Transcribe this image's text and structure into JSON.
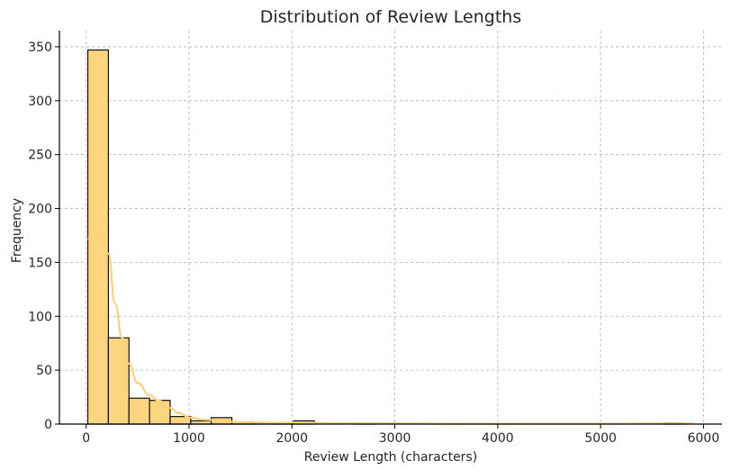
{
  "chart_data": {
    "type": "bar",
    "title": "Distribution of Review Lengths",
    "xlabel": "Review Length (characters)",
    "ylabel": "Frequency",
    "xlim": [
      -260,
      6180
    ],
    "ylim": [
      0,
      365
    ],
    "xticks": [
      0,
      1000,
      2000,
      3000,
      4000,
      5000,
      6000
    ],
    "yticks": [
      0,
      50,
      100,
      150,
      200,
      250,
      300,
      350
    ],
    "grid": true,
    "bar_color": "#fdd57f",
    "edge_color": "#111111",
    "kde_color": "#fbd27a",
    "bins": [
      {
        "x0": 16,
        "x1": 216,
        "count": 347
      },
      {
        "x0": 216,
        "x1": 416,
        "count": 80
      },
      {
        "x0": 416,
        "x1": 616,
        "count": 24
      },
      {
        "x0": 616,
        "x1": 816,
        "count": 22
      },
      {
        "x0": 816,
        "x1": 1016,
        "count": 7
      },
      {
        "x0": 1016,
        "x1": 1216,
        "count": 3
      },
      {
        "x0": 1216,
        "x1": 1416,
        "count": 6
      },
      {
        "x0": 1416,
        "x1": 1616,
        "count": 2
      },
      {
        "x0": 1616,
        "x1": 1816,
        "count": 1
      },
      {
        "x0": 1816,
        "x1": 2016,
        "count": 1
      },
      {
        "x0": 2016,
        "x1": 2216,
        "count": 3
      },
      {
        "x0": 2216,
        "x1": 2416,
        "count": 0
      },
      {
        "x0": 2416,
        "x1": 2616,
        "count": 0
      },
      {
        "x0": 2616,
        "x1": 2816,
        "count": 1
      },
      {
        "x0": 2816,
        "x1": 3016,
        "count": 0
      },
      {
        "x0": 3016,
        "x1": 3216,
        "count": 0
      },
      {
        "x0": 3216,
        "x1": 3416,
        "count": 0
      },
      {
        "x0": 3416,
        "x1": 3616,
        "count": 0
      },
      {
        "x0": 3616,
        "x1": 3816,
        "count": 0
      },
      {
        "x0": 3816,
        "x1": 4016,
        "count": 0
      },
      {
        "x0": 4016,
        "x1": 4216,
        "count": 0
      },
      {
        "x0": 4216,
        "x1": 4416,
        "count": 0
      },
      {
        "x0": 4416,
        "x1": 4616,
        "count": 0
      },
      {
        "x0": 4616,
        "x1": 4816,
        "count": 0
      },
      {
        "x0": 4816,
        "x1": 5016,
        "count": 0
      },
      {
        "x0": 5016,
        "x1": 5216,
        "count": 0
      },
      {
        "x0": 5216,
        "x1": 5416,
        "count": 0
      },
      {
        "x0": 5416,
        "x1": 5616,
        "count": 0
      },
      {
        "x0": 5616,
        "x1": 5816,
        "count": 1
      },
      {
        "x0": 5816,
        "x1": 5900,
        "count": 0
      }
    ],
    "kde": [
      [
        16,
        172
      ],
      [
        80,
        175
      ],
      [
        150,
        174
      ],
      [
        216,
        158
      ],
      [
        280,
        112
      ],
      [
        350,
        80
      ],
      [
        416,
        56
      ],
      [
        500,
        38
      ],
      [
        616,
        27
      ],
      [
        700,
        22
      ],
      [
        816,
        15
      ],
      [
        900,
        10
      ],
      [
        1016,
        6
      ],
      [
        1150,
        4
      ],
      [
        1300,
        3
      ],
      [
        1450,
        2
      ],
      [
        1600,
        1.5
      ],
      [
        1800,
        1.2
      ],
      [
        2016,
        1.4
      ],
      [
        2200,
        1.1
      ],
      [
        2500,
        0.8
      ],
      [
        2800,
        0.9
      ],
      [
        3200,
        0.5
      ],
      [
        3600,
        0.3
      ],
      [
        4000,
        0.3
      ],
      [
        4500,
        0.4
      ],
      [
        5000,
        0.4
      ],
      [
        5500,
        0.5
      ],
      [
        5800,
        0.6
      ],
      [
        5900,
        0.5
      ]
    ]
  }
}
